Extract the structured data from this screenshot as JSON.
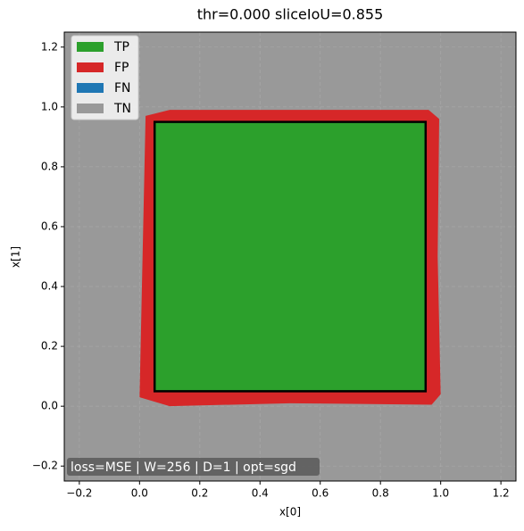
{
  "chart_data": {
    "type": "region",
    "title": "thr=0.000  sliceIoU=0.855",
    "xlabel": "x[0]",
    "ylabel": "x[1]",
    "annotation": "loss=MSE | W=256 | D=1 | opt=sgd",
    "xlim": [
      -0.25,
      1.25
    ],
    "ylim": [
      -0.25,
      1.25
    ],
    "xticks": [
      {
        "value": -0.2,
        "label": "−0.2"
      },
      {
        "value": 0,
        "label": "0.0"
      },
      0.2,
      0.4,
      0.6,
      0.8,
      {
        "value": 1,
        "label": "1.0"
      },
      1.2
    ],
    "yticks": [
      {
        "value": -0.2,
        "label": "−0.2"
      },
      {
        "value": 0,
        "label": "0.0"
      },
      0.2,
      0.4,
      0.6,
      0.8,
      {
        "value": 1,
        "label": "1.0"
      },
      1.2
    ],
    "grid": true,
    "legend": "upper left",
    "series": [
      {
        "name": "TP",
        "color": "#2ca02c"
      },
      {
        "name": "FP",
        "color": "#d62728"
      },
      {
        "name": "FN",
        "color": "#1f77b4"
      },
      {
        "name": "TN",
        "color": "#999999"
      }
    ],
    "fp_region": {
      "x": [
        0.02,
        0.1,
        0.5,
        0.96,
        0.995,
        0.99,
        1.0,
        0.97,
        0.5,
        0.1,
        0.0,
        0.01
      ],
      "y": [
        0.97,
        0.99,
        0.99,
        0.99,
        0.96,
        0.5,
        0.04,
        0.005,
        0.01,
        0.0,
        0.03,
        0.5
      ]
    },
    "tp_region": {
      "x": [
        0.05,
        0.95
      ],
      "y": [
        0.05,
        0.95
      ]
    }
  }
}
